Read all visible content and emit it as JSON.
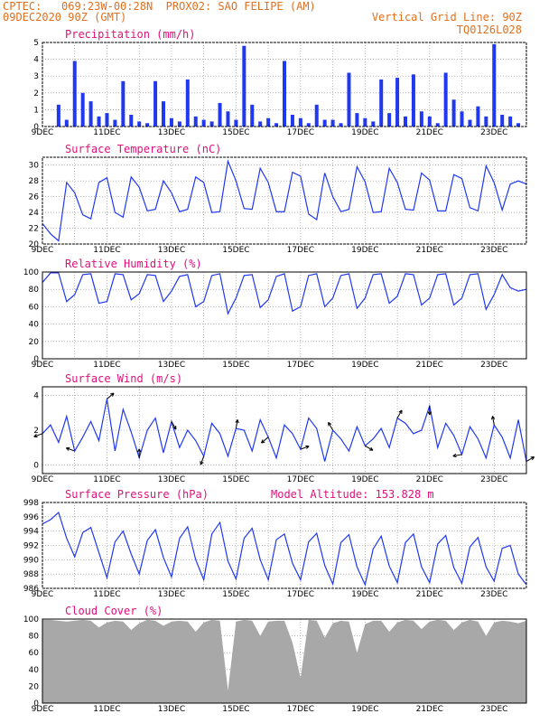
{
  "header": {
    "left_line1": "CPTEC:   069:23W-00:28N  PROX02: SAO FELIPE (AM)",
    "left_line2": "09DEC2020 90Z (GMT)",
    "right_line2": "Vertical Grid Line: 90Z",
    "right_line3": "TQ0126L028"
  },
  "colors": {
    "header": "#e07020",
    "title": "#e0107a",
    "series": "#2038f0",
    "cloud": "#a8a8a8",
    "grid": "#888888",
    "wind_arrows": "#000000"
  },
  "x_tick_labels": [
    "9DEC",
    "11DEC",
    "13DEC",
    "15DEC",
    "17DEC",
    "19DEC",
    "21DEC",
    "23DEC"
  ],
  "chart_data": [
    {
      "type": "bar",
      "title": "Precipitation (mm/h)",
      "ylim": [
        0,
        5
      ],
      "yticks": [
        "0",
        "1",
        "2",
        "3",
        "4",
        "5"
      ],
      "x": [
        "9DEC 12Z",
        "9DEC 18Z",
        "10DEC 00Z",
        "10DEC 06Z",
        "10DEC 12Z",
        "10DEC 18Z",
        "11DEC 00Z",
        "11DEC 06Z",
        "11DEC 12Z",
        "11DEC 18Z",
        "12DEC 00Z",
        "12DEC 06Z",
        "12DEC 12Z",
        "12DEC 18Z",
        "13DEC 00Z",
        "13DEC 06Z",
        "13DEC 12Z",
        "13DEC 18Z",
        "14DEC 00Z",
        "14DEC 06Z",
        "14DEC 12Z",
        "14DEC 18Z",
        "15DEC 00Z",
        "15DEC 06Z",
        "15DEC 12Z",
        "15DEC 18Z",
        "16DEC 00Z",
        "16DEC 06Z",
        "16DEC 12Z",
        "16DEC 18Z",
        "17DEC 00Z",
        "17DEC 06Z",
        "17DEC 12Z",
        "17DEC 18Z",
        "18DEC 00Z",
        "18DEC 06Z",
        "18DEC 12Z",
        "18DEC 18Z",
        "19DEC 00Z",
        "19DEC 06Z",
        "19DEC 12Z",
        "19DEC 18Z",
        "20DEC 00Z",
        "20DEC 06Z",
        "20DEC 12Z",
        "20DEC 18Z",
        "21DEC 00Z",
        "21DEC 06Z",
        "21DEC 12Z",
        "21DEC 18Z",
        "22DEC 00Z",
        "22DEC 06Z",
        "22DEC 12Z",
        "22DEC 18Z",
        "23DEC 00Z",
        "23DEC 06Z",
        "23DEC 12Z",
        "23DEC 18Z"
      ],
      "values": [
        1.3,
        0.4,
        3.9,
        2.0,
        1.5,
        0.6,
        0.8,
        0.4,
        2.7,
        0.7,
        0.3,
        0.2,
        2.7,
        1.5,
        0.5,
        0.3,
        2.8,
        0.6,
        0.4,
        0.3,
        1.4,
        0.9,
        0.4,
        4.8,
        1.3,
        0.3,
        0.5,
        0.2,
        3.9,
        0.7,
        0.5,
        0.2,
        1.3,
        0.4,
        0.4,
        0.2,
        3.2,
        0.8,
        0.5,
        0.3,
        2.8,
        0.8,
        2.9,
        0.6,
        3.1,
        0.9,
        0.6,
        0.2,
        3.2,
        1.6,
        0.9,
        0.4,
        1.2,
        0.6,
        4.9,
        0.7,
        0.6,
        0.2
      ]
    },
    {
      "type": "line",
      "title": "Surface Temperature (nC)",
      "ylim": [
        20,
        31
      ],
      "yticks": [
        "20",
        "22",
        "24",
        "26",
        "28",
        "30"
      ],
      "x": [
        "9DEC 00Z",
        "9DEC 06Z",
        "9DEC 12Z",
        "9DEC 18Z",
        "10DEC 00Z",
        "10DEC 06Z",
        "10DEC 12Z",
        "10DEC 18Z",
        "11DEC 00Z",
        "11DEC 06Z",
        "11DEC 12Z",
        "11DEC 18Z",
        "12DEC 00Z",
        "12DEC 06Z",
        "12DEC 12Z",
        "12DEC 18Z",
        "13DEC 00Z",
        "13DEC 06Z",
        "13DEC 12Z",
        "13DEC 18Z",
        "14DEC 00Z",
        "14DEC 06Z",
        "14DEC 12Z",
        "14DEC 18Z",
        "15DEC 00Z",
        "15DEC 06Z",
        "15DEC 12Z",
        "15DEC 18Z",
        "16DEC 00Z",
        "16DEC 06Z",
        "16DEC 12Z",
        "16DEC 18Z",
        "17DEC 00Z",
        "17DEC 06Z",
        "17DEC 12Z",
        "17DEC 18Z",
        "18DEC 00Z",
        "18DEC 06Z",
        "18DEC 12Z",
        "18DEC 18Z",
        "19DEC 00Z",
        "19DEC 06Z",
        "19DEC 12Z",
        "19DEC 18Z",
        "20DEC 00Z",
        "20DEC 06Z",
        "20DEC 12Z",
        "20DEC 18Z",
        "21DEC 00Z",
        "21DEC 06Z",
        "21DEC 12Z",
        "21DEC 18Z",
        "22DEC 00Z",
        "22DEC 06Z",
        "22DEC 12Z",
        "22DEC 18Z",
        "23DEC 00Z",
        "23DEC 06Z",
        "23DEC 12Z",
        "23DEC 18Z",
        "24DEC 00Z"
      ],
      "values": [
        22.6,
        21.3,
        20.4,
        27.8,
        26.5,
        23.7,
        23.2,
        27.8,
        28.4,
        24.0,
        23.4,
        28.5,
        27.2,
        24.2,
        24.4,
        28.0,
        26.5,
        24.1,
        24.4,
        28.5,
        27.8,
        24.0,
        24.1,
        30.5,
        28.0,
        24.5,
        24.4,
        29.6,
        27.8,
        24.1,
        24.1,
        29.1,
        28.6,
        23.8,
        23.1,
        29.0,
        26.0,
        24.1,
        24.4,
        29.8,
        27.9,
        24.0,
        24.1,
        29.6,
        27.8,
        24.4,
        24.3,
        29.0,
        28.1,
        24.2,
        24.2,
        28.8,
        28.3,
        24.6,
        24.2,
        29.9,
        27.8,
        24.3,
        27.6,
        28.0,
        27.6
      ]
    },
    {
      "type": "line",
      "title": "Relative Humidity (%)",
      "ylim": [
        0,
        100
      ],
      "yticks": [
        "0",
        "20",
        "40",
        "60",
        "80",
        "100"
      ],
      "x": [
        "9DEC 00Z",
        "9DEC 06Z",
        "9DEC 12Z",
        "9DEC 18Z",
        "10DEC 00Z",
        "10DEC 06Z",
        "10DEC 12Z",
        "10DEC 18Z",
        "11DEC 00Z",
        "11DEC 06Z",
        "11DEC 12Z",
        "11DEC 18Z",
        "12DEC 00Z",
        "12DEC 06Z",
        "12DEC 12Z",
        "12DEC 18Z",
        "13DEC 00Z",
        "13DEC 06Z",
        "13DEC 12Z",
        "13DEC 18Z",
        "14DEC 00Z",
        "14DEC 06Z",
        "14DEC 12Z",
        "14DEC 18Z",
        "15DEC 00Z",
        "15DEC 06Z",
        "15DEC 12Z",
        "15DEC 18Z",
        "16DEC 00Z",
        "16DEC 06Z",
        "16DEC 12Z",
        "16DEC 18Z",
        "17DEC 00Z",
        "17DEC 06Z",
        "17DEC 12Z",
        "17DEC 18Z",
        "18DEC 00Z",
        "18DEC 06Z",
        "18DEC 12Z",
        "18DEC 18Z",
        "19DEC 00Z",
        "19DEC 06Z",
        "19DEC 12Z",
        "19DEC 18Z",
        "20DEC 00Z",
        "20DEC 06Z",
        "20DEC 12Z",
        "20DEC 18Z",
        "21DEC 00Z",
        "21DEC 06Z",
        "21DEC 12Z",
        "21DEC 18Z",
        "22DEC 00Z",
        "22DEC 06Z",
        "22DEC 12Z",
        "22DEC 18Z",
        "23DEC 00Z",
        "23DEC 06Z",
        "23DEC 12Z",
        "23DEC 18Z",
        "24DEC 00Z"
      ],
      "values": [
        88,
        99,
        99,
        66,
        74,
        97,
        98,
        64,
        66,
        98,
        97,
        68,
        75,
        97,
        96,
        66,
        78,
        95,
        97,
        60,
        66,
        96,
        98,
        52,
        70,
        96,
        97,
        59,
        68,
        95,
        98,
        55,
        60,
        96,
        98,
        60,
        70,
        96,
        98,
        58,
        70,
        97,
        98,
        64,
        72,
        98,
        97,
        62,
        70,
        97,
        98,
        62,
        70,
        97,
        98,
        57,
        74,
        97,
        82,
        78,
        80
      ]
    },
    {
      "type": "line",
      "title": "Surface Wind (m/s)",
      "ylim": [
        -0.5,
        4.5
      ],
      "yticks": [
        "0",
        "2",
        "4"
      ],
      "x": [
        "9DEC 00Z",
        "9DEC 06Z",
        "9DEC 12Z",
        "9DEC 18Z",
        "10DEC 00Z",
        "10DEC 06Z",
        "10DEC 12Z",
        "10DEC 18Z",
        "11DEC 00Z",
        "11DEC 06Z",
        "11DEC 12Z",
        "11DEC 18Z",
        "12DEC 00Z",
        "12DEC 06Z",
        "12DEC 12Z",
        "12DEC 18Z",
        "13DEC 00Z",
        "13DEC 06Z",
        "13DEC 12Z",
        "13DEC 18Z",
        "14DEC 00Z",
        "14DEC 06Z",
        "14DEC 12Z",
        "14DEC 18Z",
        "15DEC 00Z",
        "15DEC 06Z",
        "15DEC 12Z",
        "15DEC 18Z",
        "16DEC 00Z",
        "16DEC 06Z",
        "16DEC 12Z",
        "16DEC 18Z",
        "17DEC 00Z",
        "17DEC 06Z",
        "17DEC 12Z",
        "17DEC 18Z",
        "18DEC 00Z",
        "18DEC 06Z",
        "18DEC 12Z",
        "18DEC 18Z",
        "19DEC 00Z",
        "19DEC 06Z",
        "19DEC 12Z",
        "19DEC 18Z",
        "20DEC 00Z",
        "20DEC 06Z",
        "20DEC 12Z",
        "20DEC 18Z",
        "21DEC 00Z",
        "21DEC 06Z",
        "21DEC 12Z",
        "21DEC 18Z",
        "22DEC 00Z",
        "22DEC 06Z",
        "22DEC 12Z",
        "22DEC 18Z",
        "23DEC 00Z",
        "23DEC 06Z",
        "23DEC 12Z",
        "23DEC 18Z",
        "24DEC 00Z"
      ],
      "values": [
        1.8,
        2.3,
        1.3,
        2.8,
        0.8,
        1.6,
        2.5,
        1.4,
        3.8,
        0.8,
        3.2,
        1.9,
        0.4,
        2.0,
        2.7,
        0.7,
        2.5,
        1.0,
        2.0,
        1.4,
        0.5,
        2.4,
        1.8,
        0.5,
        2.1,
        2.0,
        0.8,
        2.6,
        1.6,
        0.4,
        2.3,
        1.8,
        0.9,
        2.7,
        2.1,
        0.2,
        2.0,
        1.5,
        0.8,
        2.2,
        1.1,
        1.5,
        2.1,
        1.0,
        2.7,
        2.4,
        1.8,
        2.0,
        3.4,
        1.0,
        2.4,
        1.7,
        0.6,
        2.2,
        1.5,
        0.4,
        2.3,
        1.6,
        0.4,
        2.6,
        0.2
      ]
    },
    {
      "type": "line",
      "title": "Surface Pressure (hPa)",
      "annotation": "Model Altitude: 153.828  m",
      "ylim": [
        986,
        998
      ],
      "yticks": [
        "986",
        "988",
        "990",
        "992",
        "994",
        "996",
        "998"
      ],
      "x": [
        "9DEC 00Z",
        "9DEC 06Z",
        "9DEC 12Z",
        "9DEC 18Z",
        "10DEC 00Z",
        "10DEC 06Z",
        "10DEC 12Z",
        "10DEC 18Z",
        "11DEC 00Z",
        "11DEC 06Z",
        "11DEC 12Z",
        "11DEC 18Z",
        "12DEC 00Z",
        "12DEC 06Z",
        "12DEC 12Z",
        "12DEC 18Z",
        "13DEC 00Z",
        "13DEC 06Z",
        "13DEC 12Z",
        "13DEC 18Z",
        "14DEC 00Z",
        "14DEC 06Z",
        "14DEC 12Z",
        "14DEC 18Z",
        "15DEC 00Z",
        "15DEC 06Z",
        "15DEC 12Z",
        "15DEC 18Z",
        "16DEC 00Z",
        "16DEC 06Z",
        "16DEC 12Z",
        "16DEC 18Z",
        "17DEC 00Z",
        "17DEC 06Z",
        "17DEC 12Z",
        "17DEC 18Z",
        "18DEC 00Z",
        "18DEC 06Z",
        "18DEC 12Z",
        "18DEC 18Z",
        "19DEC 00Z",
        "19DEC 06Z",
        "19DEC 12Z",
        "19DEC 18Z",
        "20DEC 00Z",
        "20DEC 06Z",
        "20DEC 12Z",
        "20DEC 18Z",
        "21DEC 00Z",
        "21DEC 06Z",
        "21DEC 12Z",
        "21DEC 18Z",
        "22DEC 00Z",
        "22DEC 06Z",
        "22DEC 12Z",
        "22DEC 18Z",
        "23DEC 00Z",
        "23DEC 06Z",
        "23DEC 12Z",
        "23DEC 18Z",
        "24DEC 00Z"
      ],
      "values": [
        995.0,
        995.6,
        996.6,
        993.0,
        990.4,
        993.8,
        994.5,
        991.0,
        987.5,
        992.5,
        994.0,
        990.8,
        988.0,
        992.7,
        994.2,
        990.3,
        987.6,
        993.0,
        994.6,
        990.0,
        987.2,
        993.6,
        995.2,
        989.8,
        987.3,
        993.0,
        994.4,
        990.0,
        987.2,
        992.8,
        993.6,
        989.5,
        987.2,
        992.5,
        993.7,
        989.2,
        986.6,
        992.4,
        993.5,
        989.0,
        986.5,
        991.5,
        993.3,
        989.1,
        986.8,
        992.4,
        993.6,
        989.0,
        986.8,
        992.2,
        993.4,
        988.9,
        986.7,
        991.8,
        993.1,
        989.0,
        987.0,
        991.6,
        992.0,
        988.0,
        986.5
      ]
    },
    {
      "type": "area",
      "title": "Cloud Cover (%)",
      "ylim": [
        0,
        100
      ],
      "yticks": [
        "0",
        "20",
        "40",
        "60",
        "80",
        "100"
      ],
      "x": [
        "9DEC 00Z",
        "9DEC 06Z",
        "9DEC 12Z",
        "9DEC 18Z",
        "10DEC 00Z",
        "10DEC 06Z",
        "10DEC 12Z",
        "10DEC 18Z",
        "11DEC 00Z",
        "11DEC 06Z",
        "11DEC 12Z",
        "11DEC 18Z",
        "12DEC 00Z",
        "12DEC 06Z",
        "12DEC 12Z",
        "12DEC 18Z",
        "13DEC 00Z",
        "13DEC 06Z",
        "13DEC 12Z",
        "13DEC 18Z",
        "14DEC 00Z",
        "14DEC 06Z",
        "14DEC 12Z",
        "14DEC 18Z",
        "15DEC 00Z",
        "15DEC 06Z",
        "15DEC 12Z",
        "15DEC 18Z",
        "16DEC 00Z",
        "16DEC 06Z",
        "16DEC 12Z",
        "16DEC 18Z",
        "17DEC 00Z",
        "17DEC 06Z",
        "17DEC 12Z",
        "17DEC 18Z",
        "18DEC 00Z",
        "18DEC 06Z",
        "18DEC 12Z",
        "18DEC 18Z",
        "19DEC 00Z",
        "19DEC 06Z",
        "19DEC 12Z",
        "19DEC 18Z",
        "20DEC 00Z",
        "20DEC 06Z",
        "20DEC 12Z",
        "20DEC 18Z",
        "21DEC 00Z",
        "21DEC 06Z",
        "21DEC 12Z",
        "21DEC 18Z",
        "22DEC 00Z",
        "22DEC 06Z",
        "22DEC 12Z",
        "22DEC 18Z",
        "23DEC 00Z",
        "23DEC 06Z",
        "23DEC 12Z",
        "23DEC 18Z",
        "24DEC 00Z"
      ],
      "values": [
        99,
        99,
        98,
        97,
        98,
        99,
        98,
        90,
        96,
        98,
        97,
        87,
        95,
        99,
        98,
        92,
        97,
        98,
        97,
        85,
        96,
        99,
        98,
        15,
        97,
        99,
        98,
        80,
        97,
        98,
        98,
        72,
        30,
        99,
        98,
        78,
        95,
        98,
        97,
        60,
        94,
        98,
        98,
        85,
        96,
        99,
        98,
        88,
        97,
        99,
        98,
        87,
        96,
        99,
        97,
        80,
        96,
        98,
        97,
        95,
        98
      ]
    }
  ]
}
